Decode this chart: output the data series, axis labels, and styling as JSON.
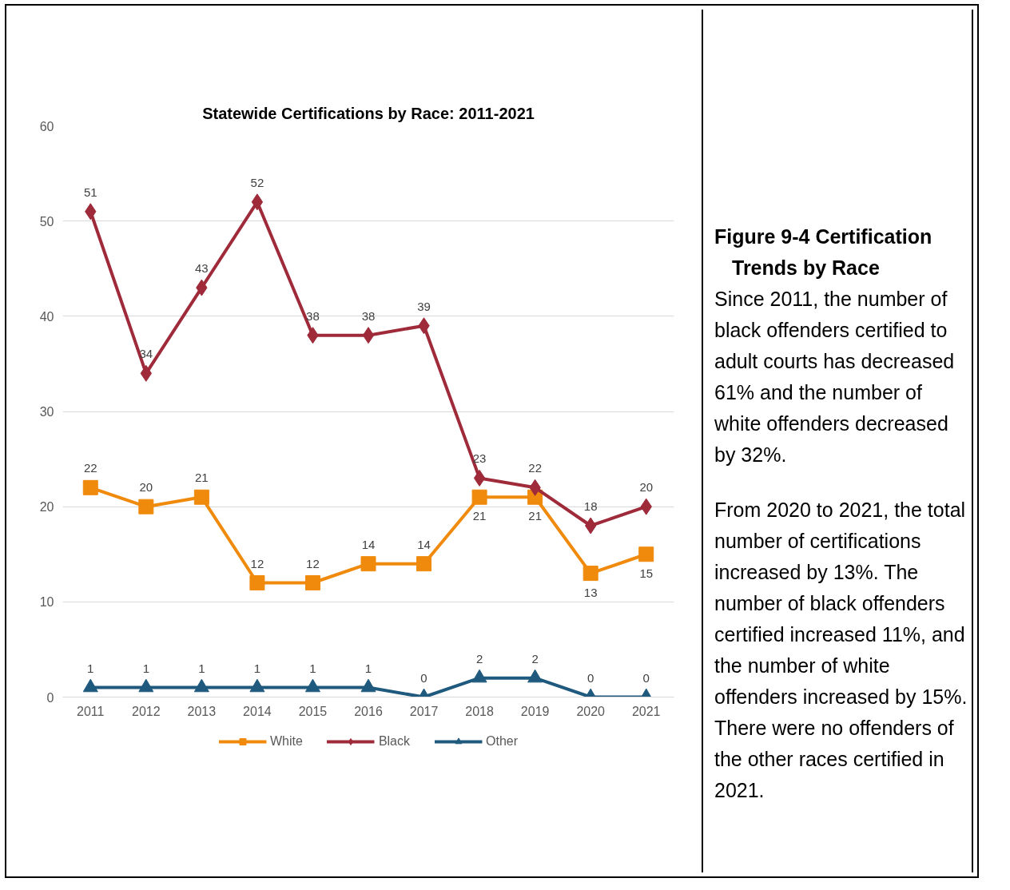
{
  "chart_data": {
    "type": "line",
    "title": "Statewide Certifications by Race: 2011-2021",
    "categories": [
      "2011",
      "2012",
      "2013",
      "2014",
      "2015",
      "2016",
      "2017",
      "2018",
      "2019",
      "2020",
      "2021"
    ],
    "series": [
      {
        "name": "White",
        "color": "#f08a0c",
        "marker": "square",
        "values": [
          22,
          20,
          21,
          12,
          12,
          14,
          14,
          21,
          21,
          13,
          15
        ]
      },
      {
        "name": "Black",
        "color": "#9e2a3a",
        "marker": "diamond",
        "values": [
          51,
          34,
          43,
          52,
          38,
          38,
          39,
          23,
          22,
          18,
          20
        ]
      },
      {
        "name": "Other",
        "color": "#1f5a7e",
        "marker": "triangle",
        "values": [
          1,
          1,
          1,
          1,
          1,
          1,
          0,
          2,
          2,
          0,
          0
        ]
      }
    ],
    "ylim": [
      0,
      60
    ],
    "yticks": [
      0,
      10,
      20,
      30,
      40,
      50,
      60
    ],
    "grid": "y",
    "legend": "bottom",
    "data_labels": true,
    "line_style": "solid",
    "annotations": [
      "Figure 9-4 Certification Trends by Race",
      "Since 2011, the number of black offenders certified to adult courts has decreased 61% and the number of white offenders decreased by 32%.",
      "From 2020 to 2021, the total number of certifications increased by 13%. The number of black offenders certified increased 11%, and the number of white offenders increased by 15%. There were no offenders of the other races certified in 2021."
    ]
  }
}
